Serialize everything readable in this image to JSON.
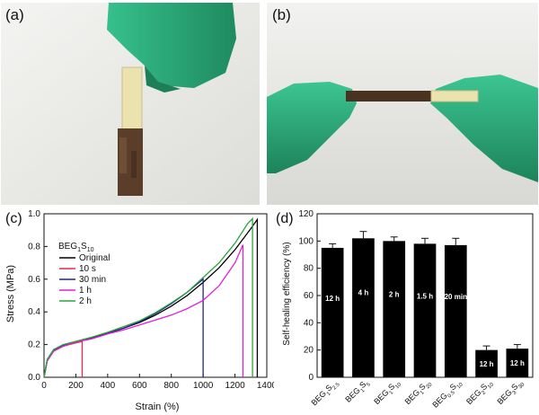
{
  "panels": {
    "a": {
      "label": "(a)"
    },
    "b": {
      "label": "(b)"
    }
  },
  "colors": {
    "glove": "#2fae7e",
    "glove_shadow": "#1d7f58",
    "film": "#e8dfa9",
    "healed_film": "#5a3e2a",
    "bar_fill": "#000000",
    "bar_label": "#ffffff"
  },
  "chart_data": [
    {
      "panel_label": "(c)",
      "type": "line",
      "title": "",
      "xlabel": "Strain (%)",
      "ylabel": "Stress (MPa)",
      "xlim": [
        0,
        1400
      ],
      "ylim": [
        0,
        1.0
      ],
      "xticks": [
        0,
        200,
        400,
        600,
        800,
        1000,
        1200,
        1400
      ],
      "yticks": [
        0.0,
        0.2,
        0.4,
        0.6,
        0.8,
        1.0
      ],
      "grid": false,
      "legend_title": "BEG1S10",
      "legend_position": "top-left",
      "series": [
        {
          "name": "Original",
          "color": "#000000",
          "x": [
            0,
            20,
            60,
            120,
            200,
            300,
            400,
            500,
            600,
            700,
            800,
            900,
            1000,
            1100,
            1200,
            1300,
            1340
          ],
          "y": [
            0,
            0.1,
            0.16,
            0.19,
            0.215,
            0.24,
            0.27,
            0.3,
            0.335,
            0.38,
            0.435,
            0.5,
            0.58,
            0.67,
            0.78,
            0.91,
            0.965
          ],
          "break_at": 1340
        },
        {
          "name": "10 s",
          "color": "#e8274b",
          "x": [
            0,
            20,
            60,
            120,
            200,
            240
          ],
          "y": [
            0,
            0.1,
            0.16,
            0.19,
            0.21,
            0.22
          ],
          "break_at": 240
        },
        {
          "name": "30 min",
          "color": "#22208f",
          "x": [
            0,
            20,
            60,
            120,
            200,
            300,
            400,
            500,
            600,
            700,
            800,
            900,
            1000
          ],
          "y": [
            0,
            0.1,
            0.165,
            0.195,
            0.215,
            0.24,
            0.27,
            0.3,
            0.34,
            0.39,
            0.45,
            0.52,
            0.6
          ],
          "break_at": 1000
        },
        {
          "name": "1 h",
          "color": "#e020d6",
          "x": [
            0,
            20,
            60,
            120,
            200,
            300,
            400,
            500,
            600,
            700,
            800,
            900,
            1000,
            1100,
            1200,
            1250
          ],
          "y": [
            0,
            0.1,
            0.16,
            0.19,
            0.215,
            0.235,
            0.265,
            0.29,
            0.32,
            0.35,
            0.38,
            0.42,
            0.47,
            0.56,
            0.7,
            0.81
          ],
          "break_at": 1250
        },
        {
          "name": "2 h",
          "color": "#2aa33a",
          "x": [
            0,
            20,
            60,
            120,
            200,
            300,
            400,
            500,
            600,
            700,
            800,
            900,
            1000,
            1100,
            1200,
            1280,
            1310
          ],
          "y": [
            0,
            0.11,
            0.17,
            0.2,
            0.22,
            0.245,
            0.275,
            0.31,
            0.345,
            0.395,
            0.455,
            0.52,
            0.61,
            0.7,
            0.82,
            0.94,
            0.97
          ],
          "break_at": 1310
        }
      ]
    },
    {
      "panel_label": "(d)",
      "type": "bar",
      "title": "",
      "xlabel": "",
      "ylabel": "Self-healing efficiency (%)",
      "ylim": [
        0,
        120
      ],
      "yticks": [
        0,
        20,
        40,
        60,
        80,
        100,
        120
      ],
      "grid": false,
      "categories": [
        {
          "base": "BEG",
          "sub1": "1",
          "mid": "S",
          "sub2": "2.5"
        },
        {
          "base": "BEG",
          "sub1": "1",
          "mid": "S",
          "sub2": "5"
        },
        {
          "base": "BEG",
          "sub1": "1",
          "mid": "S",
          "sub2": "10"
        },
        {
          "base": "BEG",
          "sub1": "1",
          "mid": "S",
          "sub2": "20"
        },
        {
          "base": "BEG",
          "sub1": "0.5",
          "mid": "S",
          "sub2": "10"
        },
        {
          "base": "BEG",
          "sub1": "2",
          "mid": "S",
          "sub2": "10"
        },
        {
          "base": "BEG",
          "sub1": "3",
          "mid": "S",
          "sub2": "30"
        }
      ],
      "values": [
        95,
        102,
        100,
        98,
        97,
        20,
        21
      ],
      "errors": [
        3,
        5,
        3,
        4,
        5,
        3,
        3
      ],
      "bar_labels": [
        "12 h",
        "4 h",
        "2 h",
        "1.5 h",
        "20 min",
        "12 h",
        "12 h"
      ]
    }
  ]
}
